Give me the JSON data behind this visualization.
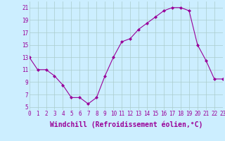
{
  "x": [
    0,
    1,
    2,
    3,
    4,
    5,
    6,
    7,
    8,
    9,
    10,
    11,
    12,
    13,
    14,
    15,
    16,
    17,
    18,
    19,
    20,
    21,
    22,
    23
  ],
  "y": [
    13,
    11,
    11,
    10,
    8.5,
    6.5,
    6.5,
    5.5,
    6.5,
    10,
    13,
    15.5,
    16,
    17.5,
    18.5,
    19.5,
    20.5,
    21,
    21,
    20.5,
    15,
    12.5,
    9.5,
    9.5
  ],
  "line_color": "#990099",
  "marker": "D",
  "marker_size": 2,
  "bg_color": "#cceeff",
  "grid_color": "#aacccc",
  "xlabel": "Windchill (Refroidissement éolien,°C)",
  "yticks": [
    5,
    7,
    9,
    11,
    13,
    15,
    17,
    19,
    21
  ],
  "xticks": [
    0,
    1,
    2,
    3,
    4,
    5,
    6,
    7,
    8,
    9,
    10,
    11,
    12,
    13,
    14,
    15,
    16,
    17,
    18,
    19,
    20,
    21,
    22,
    23
  ],
  "xlim": [
    0,
    23
  ],
  "ylim": [
    4.5,
    22.0
  ],
  "tick_fontsize": 5.5,
  "xlabel_fontsize": 7
}
